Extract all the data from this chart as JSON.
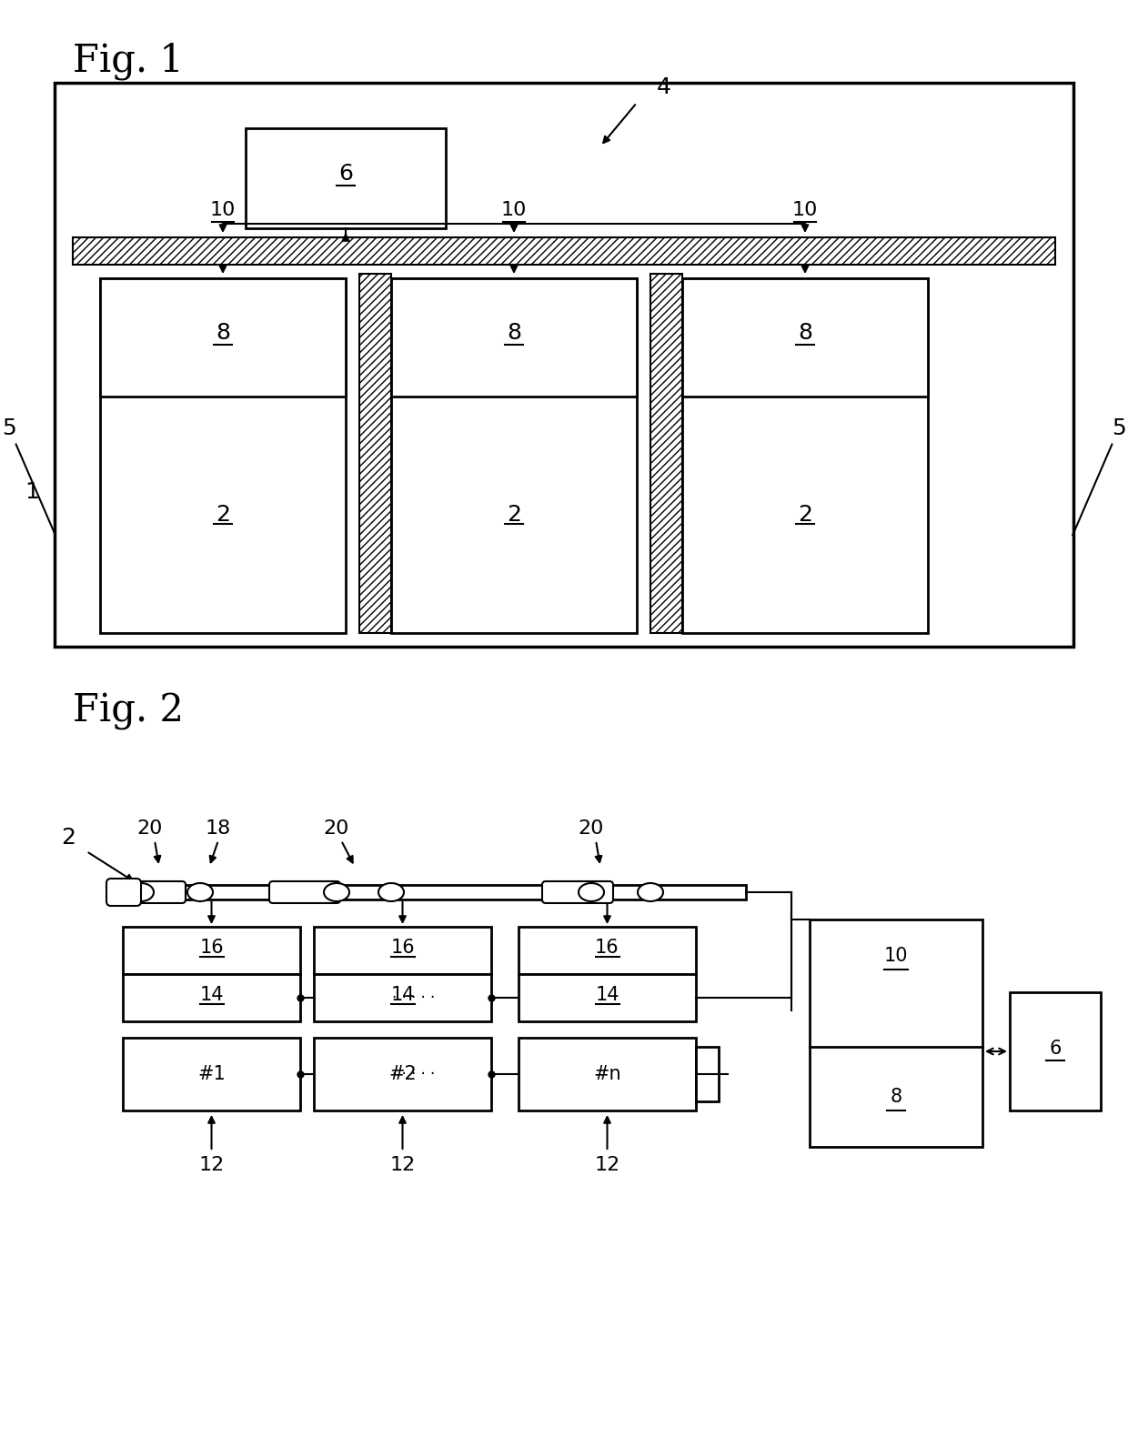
{
  "fig_title_1": "Fig. 1",
  "fig_title_2": "Fig. 2",
  "bg_color": "#ffffff",
  "line_color": "#000000",
  "hatch_color": "#000000",
  "box_color": "#f0f0f0",
  "label_color": "#000000"
}
